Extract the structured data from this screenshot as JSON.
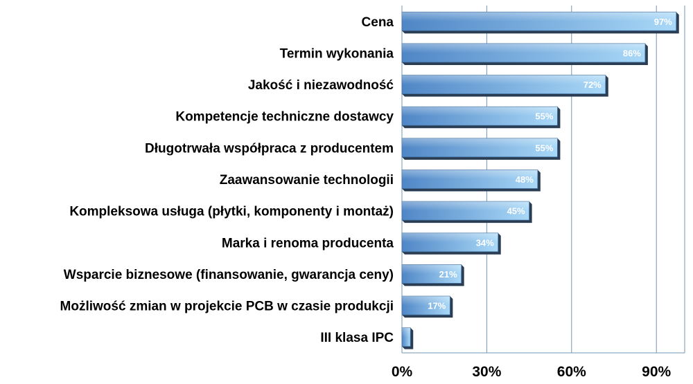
{
  "chart_data": {
    "type": "bar",
    "orientation": "horizontal",
    "categories": [
      "Cena",
      "Termin wykonania",
      "Jakość i niezawodność",
      "Kompetencje techniczne dostawcy",
      "Długotrwała współpraca z producentem",
      "Zaawansowanie technologii",
      "Kompleksowa usługa (płytki, komponenty i montaż)",
      "Marka i renoma producenta",
      "Wsparcie biznesowe (finansowanie, gwarancja ceny)",
      "Możliwość zmian w projekcie PCB w czasie produkcji",
      "III klasa IPC"
    ],
    "values": [
      97,
      86,
      72,
      55,
      55,
      48,
      45,
      34,
      21,
      17,
      3
    ],
    "value_labels": [
      "97%",
      "86%",
      "72%",
      "55%",
      "55%",
      "48%",
      "45%",
      "34%",
      "21%",
      "17%",
      ""
    ],
    "x_ticks": [
      0,
      30,
      60,
      90
    ],
    "x_tick_labels": [
      "0%",
      "30%",
      "60%",
      "90%"
    ],
    "xlim": [
      0,
      100
    ],
    "grid": "vertical",
    "colors": {
      "bar_light": "#a9d8f7",
      "bar_dark": "#4f86c6",
      "bar_shadow": "#2a3d52",
      "grid": "#6f95b5",
      "label": "#000000",
      "value_label": "#ffffff"
    }
  }
}
